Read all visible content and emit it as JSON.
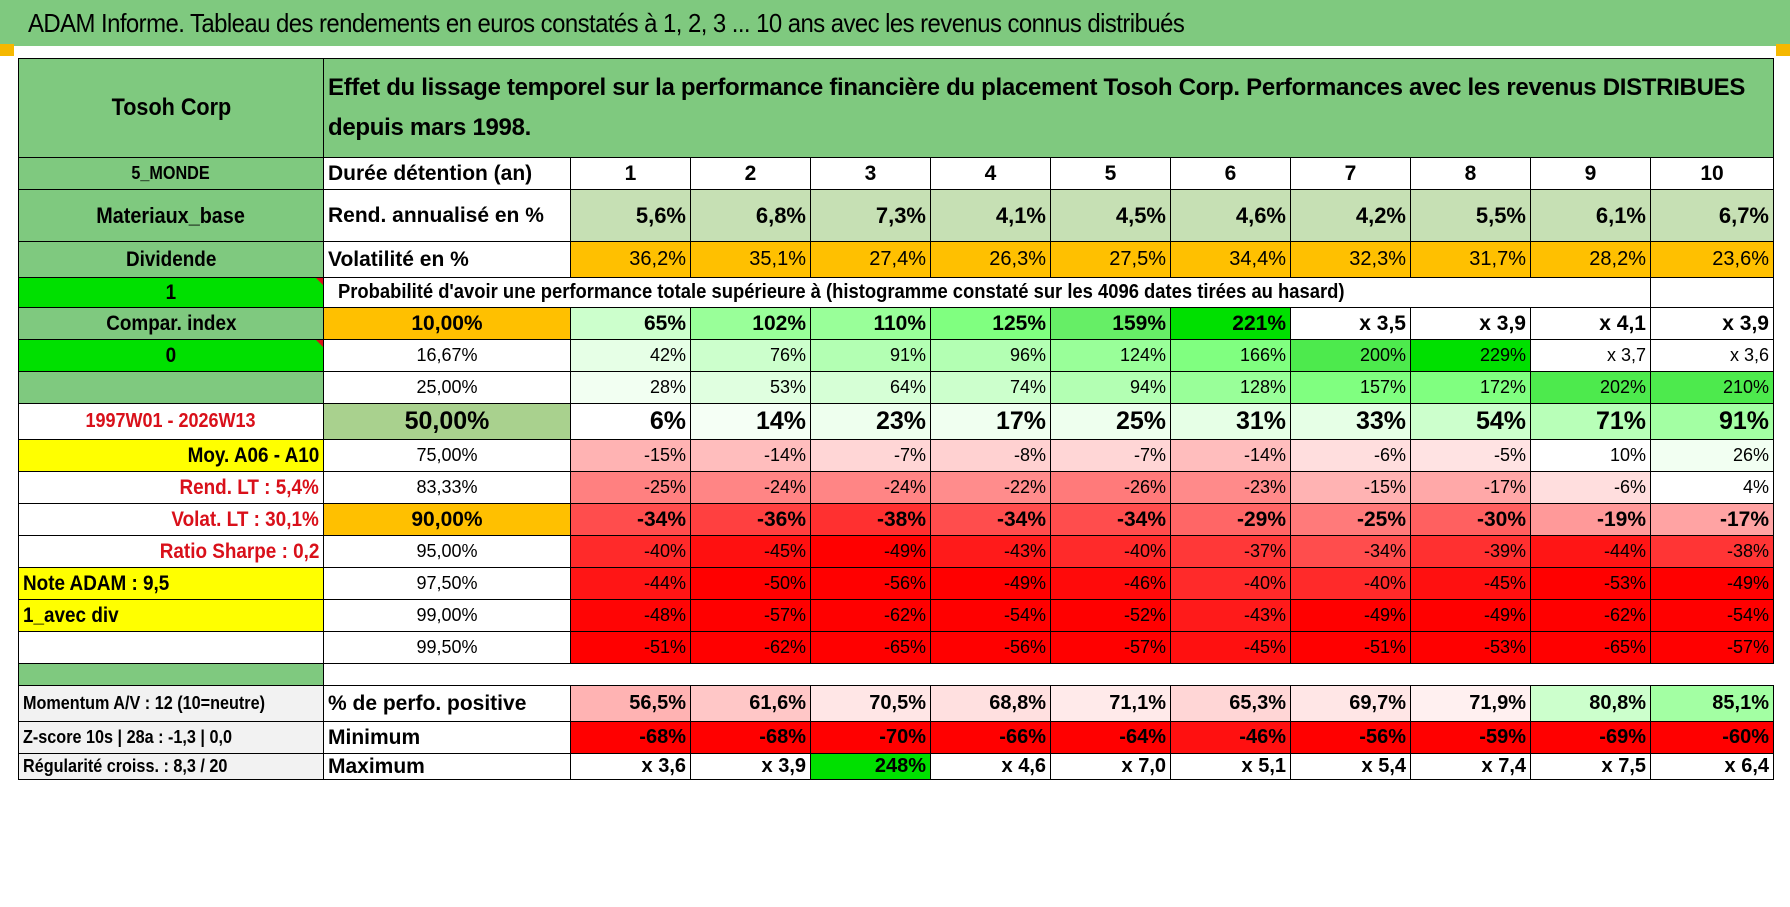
{
  "title": "ADAM Informe. Tableau des rendements en euros constatés à 1, 2, 3 ... 10 ans avec les revenus connus distribués",
  "colors": {
    "header_green": "#7fc97f",
    "bright_green": "#00e000",
    "orange": "#ffc000",
    "yellow": "#ffff00",
    "red_label": "#d9101a"
  },
  "left_panel": [
    {
      "text": "Tosoh Corp",
      "bg": "#7fc97f",
      "align": "ctr",
      "bold": true,
      "size": 24
    },
    {
      "text": "5_MONDE",
      "bg": "#7fc97f",
      "align": "ctr",
      "bold": true,
      "size": 18
    },
    {
      "text": "Materiaux_base",
      "bg": "#7fc97f",
      "align": "ctr",
      "bold": true,
      "size": 22
    },
    {
      "text": "Dividende",
      "bg": "#7fc97f",
      "align": "ctr",
      "bold": true,
      "size": 21
    },
    {
      "text": "1",
      "bg": "#00e000",
      "align": "ctr",
      "bold": true,
      "size": 21,
      "tri": true
    },
    {
      "text": "Compar. index",
      "bg": "#7fc97f",
      "align": "ctr",
      "bold": true,
      "size": 21
    },
    {
      "text": "0",
      "bg": "#00e000",
      "align": "ctr",
      "bold": true,
      "size": 21,
      "tri": true
    },
    {
      "text": "",
      "bg": "#7fc97f",
      "align": "ctr",
      "bold": true,
      "size": 21
    },
    {
      "text": "1997W01 - 2026W13",
      "bg": "#ffffff",
      "align": "ctr",
      "bold": true,
      "size": 20,
      "red": true
    },
    {
      "text": "Moy. A06 - A10",
      "bg": "#ffff00",
      "align": "num",
      "bold": true,
      "size": 21
    },
    {
      "text": "Rend. LT :   5,4%",
      "bg": "#ffffff",
      "align": "num",
      "bold": true,
      "size": 21,
      "red": true
    },
    {
      "text": "Volat. LT :   30,1%",
      "bg": "#ffffff",
      "align": "num",
      "bold": true,
      "size": 21,
      "red": true
    },
    {
      "text": "Ratio Sharpe :    0,2",
      "bg": "#ffffff",
      "align": "num",
      "bold": true,
      "size": 21,
      "red": true
    },
    {
      "text": "Note ADAM : 9,5",
      "bg": "#ffff00",
      "align": "lft",
      "bold": true,
      "size": 21
    },
    {
      "text": "1_avec div",
      "bg": "#ffff00",
      "align": "lft",
      "bold": true,
      "size": 21
    },
    {
      "text": "",
      "bg": "#ffffff",
      "align": "lft",
      "bold": true,
      "size": 21
    },
    {
      "text": "",
      "bg": "#7fc97f",
      "align": "lft",
      "bold": false,
      "size": 16
    },
    {
      "text": "Momentum A/V : 12 (10=neutre)",
      "bg": "#f2f2f2",
      "align": "lft",
      "bold": true,
      "size": 18
    },
    {
      "text": "Z-score 10s | 28a : -1,3 | 0,0",
      "bg": "#f2f2f2",
      "align": "lft",
      "bold": true,
      "size": 18
    },
    {
      "text": "Régularité croiss. : 8,3 / 20",
      "bg": "#f2f2f2",
      "align": "lft",
      "bold": true,
      "size": 18
    }
  ],
  "header": {
    "title": "Effet du lissage temporel sur la performance financière du placement Tosoh Corp. Performances avec les revenus DISTRIBUES depuis mars 1998.",
    "duration_label": "Durée détention (an)",
    "years": [
      "1",
      "2",
      "3",
      "4",
      "5",
      "6",
      "7",
      "8",
      "9",
      "10"
    ]
  },
  "stats": [
    {
      "label": "Rend. annualisé en %",
      "values": [
        "5,6%",
        "6,8%",
        "7,3%",
        "4,1%",
        "4,5%",
        "4,6%",
        "4,2%",
        "5,5%",
        "6,1%",
        "6,7%"
      ],
      "colors": [
        "#c6e0b4",
        "#c6e0b4",
        "#c6e0b4",
        "#c6e0b4",
        "#c6e0b4",
        "#c6e0b4",
        "#c6e0b4",
        "#c6e0b4",
        "#c6e0b4",
        "#c6e0b4"
      ],
      "bold": true
    },
    {
      "label": "Volatilité en %",
      "values": [
        "36,2%",
        "35,1%",
        "27,4%",
        "26,3%",
        "27,5%",
        "34,4%",
        "32,3%",
        "31,7%",
        "28,2%",
        "23,6%"
      ],
      "colors": [
        "#ffc000",
        "#ffc000",
        "#ffc000",
        "#ffc000",
        "#ffc000",
        "#ffc000",
        "#ffc000",
        "#ffc000",
        "#ffc000",
        "#ffc000"
      ],
      "bold": false
    }
  ],
  "probability_title": "Probabilité d'avoir une performance totale supérieure à (histogramme constaté sur les 4096 dates tirées au hasard)",
  "prob_rows": [
    {
      "label": "10,00%",
      "label_bg": "#ffc000",
      "label_size": 21,
      "bold": true,
      "size": 21,
      "values": [
        "65%",
        "102%",
        "110%",
        "125%",
        "159%",
        "221%",
        "x 3,5",
        "x 3,9",
        "x 4,1",
        "x 3,9"
      ],
      "colors": [
        "#ccffcc",
        "#99ff99",
        "#99ff99",
        "#80ff80",
        "#66ee66",
        "#00e000",
        "#ffffff",
        "#ffffff",
        "#ffffff",
        "#ffffff"
      ]
    },
    {
      "label": "16,67%",
      "label_bg": "#ffffff",
      "label_size": 18,
      "bold": false,
      "size": 18,
      "values": [
        "42%",
        "76%",
        "91%",
        "96%",
        "124%",
        "166%",
        "200%",
        "229%",
        "x 3,7",
        "x 3,6"
      ],
      "colors": [
        "#e6ffe6",
        "#ccffcc",
        "#b3ffb3",
        "#b3ffb3",
        "#99ff99",
        "#80ff80",
        "#4dea4d",
        "#00e000",
        "#ffffff",
        "#ffffff"
      ]
    },
    {
      "label": "25,00%",
      "label_bg": "#ffffff",
      "label_size": 18,
      "bold": false,
      "size": 18,
      "values": [
        "28%",
        "53%",
        "64%",
        "74%",
        "94%",
        "128%",
        "157%",
        "172%",
        "202%",
        "210%"
      ],
      "colors": [
        "#f2fff2",
        "#e0ffe0",
        "#d6ffd6",
        "#ccffcc",
        "#b3ffb3",
        "#99ff99",
        "#80ff80",
        "#80ff80",
        "#4dea4d",
        "#4dea4d"
      ]
    },
    {
      "label": "50,00%",
      "label_bg": "#a9d18e",
      "label_size": 25,
      "bold": true,
      "size": 25,
      "values": [
        "6%",
        "14%",
        "23%",
        "17%",
        "25%",
        "31%",
        "33%",
        "54%",
        "71%",
        "91%"
      ],
      "colors": [
        "#ffffff",
        "#f5fff5",
        "#eeffee",
        "#f0fff0",
        "#eeffee",
        "#e6ffe6",
        "#e6ffe6",
        "#ccffcc",
        "#b8ffb8",
        "#a3ffa3"
      ]
    },
    {
      "label": "75,00%",
      "label_bg": "#ffffff",
      "label_size": 18,
      "bold": false,
      "size": 18,
      "values": [
        "-15%",
        "-14%",
        "-7%",
        "-8%",
        "-7%",
        "-14%",
        "-6%",
        "-5%",
        "10%",
        "26%"
      ],
      "colors": [
        "#ffb3b3",
        "#ffbdbd",
        "#ffd6d6",
        "#ffd1d1",
        "#ffd6d6",
        "#ffbdbd",
        "#ffdede",
        "#ffe3e3",
        "#ffffff",
        "#f2fff2"
      ]
    },
    {
      "label": "83,33%",
      "label_bg": "#ffffff",
      "label_size": 18,
      "bold": false,
      "size": 18,
      "values": [
        "-25%",
        "-24%",
        "-24%",
        "-22%",
        "-26%",
        "-23%",
        "-15%",
        "-17%",
        "-6%",
        "4%"
      ],
      "colors": [
        "#ff8080",
        "#ff8585",
        "#ff8585",
        "#ff8c8c",
        "#ff7a7a",
        "#ff8a8a",
        "#ffb3b3",
        "#ffa8a8",
        "#ffdede",
        "#ffffff"
      ]
    },
    {
      "label": "90,00%",
      "label_bg": "#ffc000",
      "label_size": 21,
      "bold": true,
      "size": 21,
      "values": [
        "-34%",
        "-36%",
        "-38%",
        "-34%",
        "-34%",
        "-29%",
        "-25%",
        "-30%",
        "-19%",
        "-17%"
      ],
      "colors": [
        "#ff4d4d",
        "#ff4040",
        "#ff3030",
        "#ff4d4d",
        "#ff4d4d",
        "#ff6666",
        "#ff7a7a",
        "#ff6060",
        "#ff9999",
        "#ffa3a3"
      ]
    },
    {
      "label": "95,00%",
      "label_bg": "#ffffff",
      "label_size": 18,
      "bold": false,
      "size": 18,
      "values": [
        "-40%",
        "-45%",
        "-49%",
        "-43%",
        "-40%",
        "-37%",
        "-34%",
        "-39%",
        "-44%",
        "-38%"
      ],
      "colors": [
        "#ff2a2a",
        "#ff1010",
        "#ff0000",
        "#ff1a1a",
        "#ff2a2a",
        "#ff3838",
        "#ff4d4d",
        "#ff3030",
        "#ff1515",
        "#ff3535"
      ]
    },
    {
      "label": "97,50%",
      "label_bg": "#ffffff",
      "label_size": 18,
      "bold": false,
      "size": 18,
      "values": [
        "-44%",
        "-50%",
        "-56%",
        "-49%",
        "-46%",
        "-40%",
        "-40%",
        "-45%",
        "-53%",
        "-49%"
      ],
      "colors": [
        "#ff1515",
        "#ff0000",
        "#ff0000",
        "#ff0000",
        "#ff0a0a",
        "#ff2a2a",
        "#ff2a2a",
        "#ff1010",
        "#ff0000",
        "#ff0000"
      ]
    },
    {
      "label": "99,00%",
      "label_bg": "#ffffff",
      "label_size": 18,
      "bold": false,
      "size": 18,
      "values": [
        "-48%",
        "-57%",
        "-62%",
        "-54%",
        "-52%",
        "-43%",
        "-49%",
        "-49%",
        "-62%",
        "-54%"
      ],
      "colors": [
        "#ff0505",
        "#ff0000",
        "#ff0000",
        "#ff0000",
        "#ff0000",
        "#ff1a1a",
        "#ff0000",
        "#ff0000",
        "#ff0000",
        "#ff0000"
      ]
    },
    {
      "label": "99,50%",
      "label_bg": "#ffffff",
      "label_size": 18,
      "bold": false,
      "size": 18,
      "values": [
        "-51%",
        "-62%",
        "-65%",
        "-56%",
        "-57%",
        "-45%",
        "-51%",
        "-53%",
        "-65%",
        "-57%"
      ],
      "colors": [
        "#ff0000",
        "#ff0000",
        "#ff0000",
        "#ff0000",
        "#ff0000",
        "#ff1010",
        "#ff0000",
        "#ff0000",
        "#ff0000",
        "#ff0000"
      ]
    }
  ],
  "bottom_rows": [
    {
      "label": "% de perfo. positive",
      "values": [
        "56,5%",
        "61,6%",
        "70,5%",
        "68,8%",
        "71,1%",
        "65,3%",
        "69,7%",
        "71,9%",
        "80,8%",
        "85,1%"
      ],
      "colors": [
        "#ffb3b3",
        "#ffc7c7",
        "#ffe6e6",
        "#ffe0e0",
        "#ffeaea",
        "#ffd6d6",
        "#ffe6e6",
        "#fff0f0",
        "#ccffcc",
        "#a3ffa3"
      ]
    },
    {
      "label": "Minimum",
      "values": [
        "-68%",
        "-68%",
        "-70%",
        "-66%",
        "-64%",
        "-46%",
        "-56%",
        "-59%",
        "-69%",
        "-60%"
      ],
      "colors": [
        "#ff0000",
        "#ff0000",
        "#ff0000",
        "#ff0000",
        "#ff0000",
        "#ff1010",
        "#ff0000",
        "#ff0000",
        "#ff0000",
        "#ff0000"
      ]
    },
    {
      "label": "Maximum",
      "values": [
        "x 3,6",
        "x 3,9",
        "248%",
        "x 4,6",
        "x 7,0",
        "x 5,1",
        "x 5,4",
        "x 7,4",
        "x 7,5",
        "x 6,4"
      ],
      "colors": [
        "#ffffff",
        "#ffffff",
        "#00e000",
        "#ffffff",
        "#ffffff",
        "#ffffff",
        "#ffffff",
        "#ffffff",
        "#ffffff",
        "#ffffff"
      ]
    }
  ]
}
